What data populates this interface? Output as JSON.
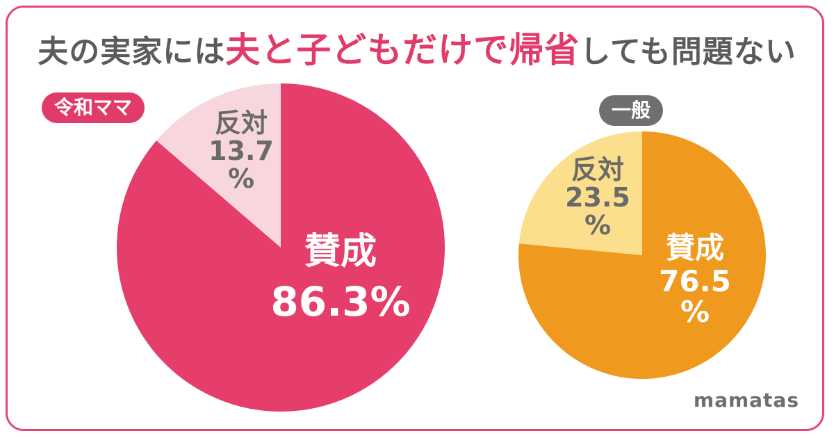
{
  "title": {
    "part1": "夫の実家には",
    "highlight": "夫と子どもだけで帰省",
    "part2": "しても問題ない"
  },
  "brand": "mamatas",
  "colors": {
    "frame": "#e4486f",
    "reiwa_agree": "#e53e6b",
    "reiwa_disagree": "#f8d6dd",
    "general_agree": "#f0991f",
    "general_disagree": "#fbdf8d"
  },
  "chart_data": [
    {
      "type": "pie",
      "group_label": "令和ママ",
      "slices": [
        {
          "label": "賛成",
          "value": 86.3,
          "value_text": "86.3%",
          "color": "#e53e6b"
        },
        {
          "label": "反対",
          "value": 13.7,
          "value_text": "13.7",
          "unit": "%",
          "color": "#f8d6dd"
        }
      ]
    },
    {
      "type": "pie",
      "group_label": "一般",
      "slices": [
        {
          "label": "賛成",
          "value": 76.5,
          "value_text": "76.5",
          "unit": "%",
          "color": "#f0991f"
        },
        {
          "label": "反対",
          "value": 23.5,
          "value_text": "23.5",
          "unit": "%",
          "color": "#fbdf8d"
        }
      ]
    }
  ]
}
